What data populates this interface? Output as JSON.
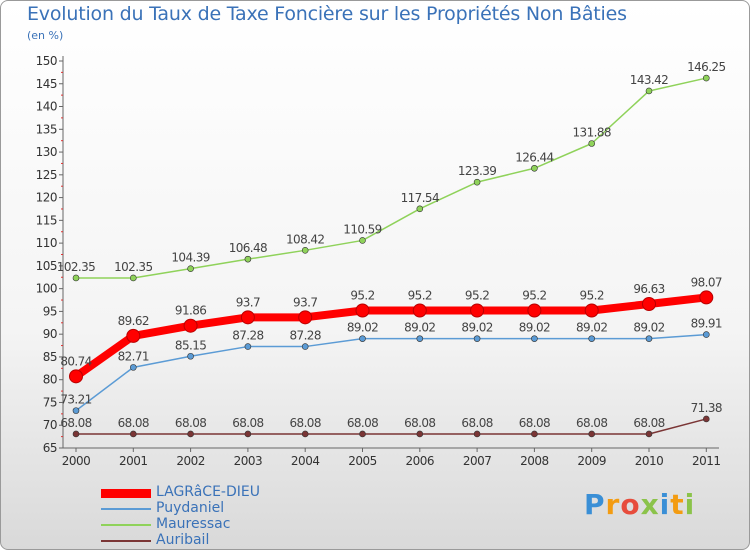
{
  "title": "Evolution du Taux de Taxe Foncière sur les Propriétés Non Bâties",
  "unit": "(en %)",
  "logo": "Proxiti",
  "chart_data": {
    "type": "line",
    "title": "Evolution du Taux de Taxe Foncière sur les Propriétés Non Bâties",
    "ylabel": "(en %)",
    "categories": [
      "2000",
      "2001",
      "2002",
      "2003",
      "2004",
      "2005",
      "2006",
      "2007",
      "2008",
      "2009",
      "2010",
      "2011"
    ],
    "ylim": [
      65,
      150
    ],
    "yticks": [
      65,
      70,
      75,
      80,
      85,
      90,
      95,
      100,
      105,
      110,
      115,
      120,
      125,
      130,
      135,
      140,
      145,
      150
    ],
    "grid": false,
    "legend_position": "bottom-left",
    "series": [
      {
        "name": "LAGRâCE-DIEU",
        "color": "#ff0000",
        "values": [
          80.74,
          89.62,
          91.86,
          93.7,
          93.7,
          95.2,
          95.2,
          95.2,
          95.2,
          95.2,
          96.63,
          98.07
        ],
        "labels": [
          "80.74",
          "89.62",
          "91.86",
          "93.7",
          "93.7",
          "95.2",
          "95.2",
          "95.2",
          "95.2",
          "95.2",
          "96.63",
          "98.07"
        ]
      },
      {
        "name": "Puydaniel",
        "color": "#5b9bd5",
        "values": [
          73.21,
          82.71,
          85.15,
          87.28,
          87.28,
          89.02,
          89.02,
          89.02,
          89.02,
          89.02,
          89.02,
          89.91
        ],
        "labels": [
          "73.21",
          "82.71",
          "85.15",
          "87.28",
          "87.28",
          "89.02",
          "89.02",
          "89.02",
          "89.02",
          "89.02",
          "89.02",
          "89.91"
        ]
      },
      {
        "name": "Mauressac",
        "color": "#8fd25a",
        "values": [
          102.35,
          102.35,
          104.39,
          106.48,
          108.42,
          110.59,
          117.54,
          123.39,
          126.44,
          131.88,
          143.42,
          146.25
        ],
        "labels": [
          "102.35",
          "102.35",
          "104.39",
          "106.48",
          "108.42",
          "110.59",
          "117.54",
          "123.39",
          "126.44",
          "131.88",
          "143.42",
          "146.25"
        ]
      },
      {
        "name": "Auribail",
        "color": "#7a3535",
        "values": [
          68.08,
          68.08,
          68.08,
          68.08,
          68.08,
          68.08,
          68.08,
          68.08,
          68.08,
          68.08,
          68.08,
          71.38
        ],
        "labels": [
          "68.08",
          "68.08",
          "68.08",
          "68.08",
          "68.08",
          "68.08",
          "68.08",
          "68.08",
          "68.08",
          "68.08",
          "68.08",
          "71.38"
        ]
      }
    ]
  }
}
